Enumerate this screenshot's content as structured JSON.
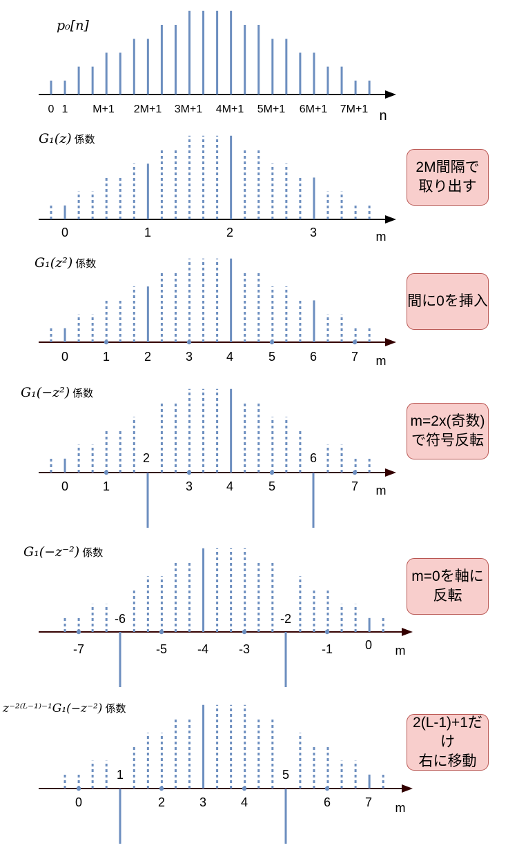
{
  "colors": {
    "stem": "#6c8ebf",
    "axis_black": "#000000",
    "axis_dark": "#330000"
  },
  "panels": [
    {
      "title": "p₀[n]",
      "suffix": "",
      "axis_label": "n",
      "tick_labels": [
        "0",
        "1",
        "M+1",
        "2M+1",
        "3M+1",
        "4M+1",
        "5M+1",
        "6M+1",
        "7M+1"
      ],
      "note": ""
    },
    {
      "title": "G₁(z)",
      "suffix": "係数",
      "axis_label": "m",
      "tick_labels": [
        "0",
        "1",
        "2",
        "3"
      ],
      "note": "2M間隔で\n取り出す"
    },
    {
      "title": "G₁(z²)",
      "suffix": "係数",
      "axis_label": "m",
      "tick_labels": [
        "0",
        "1",
        "2",
        "3",
        "4",
        "5",
        "6",
        "7"
      ],
      "note": "間に0を挿入"
    },
    {
      "title": "G₁(−z²)",
      "suffix": "係数",
      "axis_label": "m",
      "tick_labels": [
        "0",
        "1",
        "2",
        "3",
        "4",
        "5",
        "6",
        "7"
      ],
      "note": "m=2x(奇数)\nで符号反転"
    },
    {
      "title": "G₁(−z⁻²)",
      "suffix": "係数",
      "axis_label": "m",
      "tick_labels": [
        "-7",
        "-6",
        "-5",
        "-4",
        "-3",
        "-2",
        "-1",
        "0"
      ],
      "note": "m=0を軸に\n反転"
    },
    {
      "title": "z⁻²⁽ᴸ⁻¹⁾⁻¹G₁(−z⁻²)",
      "suffix": "係数",
      "axis_label": "m",
      "tick_labels": [
        "0",
        "1",
        "2",
        "3",
        "4",
        "5",
        "6",
        "7"
      ],
      "note": "2(L-1)+1だけ\n右に移動"
    }
  ]
}
